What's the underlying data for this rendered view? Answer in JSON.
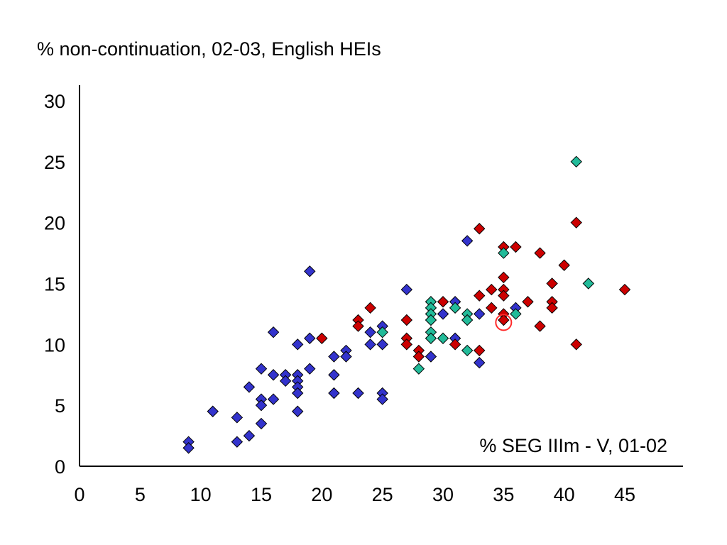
{
  "chart_data": {
    "type": "scatter",
    "title": "",
    "ylabel": "% non-continuation, 02-03, English HEIs",
    "xlabel": "",
    "annotation": "% SEG IIIm - V, 01-02",
    "xlim": [
      0,
      50
    ],
    "ylim": [
      0,
      30
    ],
    "xticks": [
      "0",
      "5",
      "10",
      "15",
      "20",
      "25",
      "30",
      "35",
      "40",
      "45"
    ],
    "yticks": [
      "0",
      "5",
      "10",
      "15",
      "20",
      "25",
      "30"
    ],
    "grid": false,
    "marker": "diamond",
    "colors": {
      "blue": "#3333cc",
      "red": "#cc0000",
      "green": "#22bb99",
      "highlight": "#ff2a2a",
      "outline": "#000000"
    },
    "series": [
      {
        "color": "blue",
        "points": [
          [
            9,
            2
          ],
          [
            9,
            1.5
          ],
          [
            11,
            4.5
          ],
          [
            13,
            4
          ],
          [
            13,
            2
          ],
          [
            14,
            2.5
          ],
          [
            14,
            6.5
          ],
          [
            15,
            8
          ],
          [
            15,
            5.5
          ],
          [
            15,
            5
          ],
          [
            15,
            3.5
          ],
          [
            16,
            11
          ],
          [
            16,
            7.5
          ],
          [
            16,
            5.5
          ],
          [
            17,
            7.5
          ],
          [
            17,
            7
          ],
          [
            18,
            10
          ],
          [
            18,
            7.5
          ],
          [
            18,
            7
          ],
          [
            18,
            6.5
          ],
          [
            18,
            6
          ],
          [
            18,
            4.5
          ],
          [
            19,
            16
          ],
          [
            19,
            10.5
          ],
          [
            19,
            8
          ],
          [
            21,
            9
          ],
          [
            21,
            7.5
          ],
          [
            21,
            6
          ],
          [
            22,
            9.5
          ],
          [
            22,
            9
          ],
          [
            23,
            6
          ],
          [
            24,
            11
          ],
          [
            24,
            10
          ],
          [
            25,
            11.5
          ],
          [
            25,
            10
          ],
          [
            25,
            6
          ],
          [
            25,
            5.5
          ],
          [
            27,
            14.5
          ],
          [
            29,
            9
          ],
          [
            30,
            12.5
          ],
          [
            31,
            13.5
          ],
          [
            31,
            10.5
          ],
          [
            32,
            18.5
          ],
          [
            33,
            12.5
          ],
          [
            33,
            8.5
          ],
          [
            36,
            13
          ]
        ]
      },
      {
        "color": "red",
        "points": [
          [
            20,
            10.5
          ],
          [
            23,
            12
          ],
          [
            23,
            11.5
          ],
          [
            24,
            13
          ],
          [
            27,
            12
          ],
          [
            27,
            10.5
          ],
          [
            27,
            10
          ],
          [
            28,
            9.5
          ],
          [
            28,
            9
          ],
          [
            30,
            13.5
          ],
          [
            31,
            10
          ],
          [
            33,
            19.5
          ],
          [
            33,
            14
          ],
          [
            33,
            9.5
          ],
          [
            34,
            14.5
          ],
          [
            34,
            13
          ],
          [
            35,
            18
          ],
          [
            35,
            15.5
          ],
          [
            35,
            14.5
          ],
          [
            35,
            14
          ],
          [
            35,
            12.5
          ],
          [
            35,
            12
          ],
          [
            36,
            18
          ],
          [
            37,
            13.5
          ],
          [
            38,
            17.5
          ],
          [
            38,
            11.5
          ],
          [
            39,
            15
          ],
          [
            39,
            13.5
          ],
          [
            39,
            13
          ],
          [
            40,
            16.5
          ],
          [
            41,
            20
          ],
          [
            41,
            10
          ],
          [
            45,
            14.5
          ]
        ]
      },
      {
        "color": "green",
        "points": [
          [
            25,
            11
          ],
          [
            28,
            8
          ],
          [
            29,
            13.5
          ],
          [
            29,
            13
          ],
          [
            29,
            12.5
          ],
          [
            29,
            12
          ],
          [
            29,
            11
          ],
          [
            29,
            10.5
          ],
          [
            30,
            10.5
          ],
          [
            31,
            13
          ],
          [
            32,
            12.5
          ],
          [
            32,
            12
          ],
          [
            32,
            9.5
          ],
          [
            35,
            17.5
          ],
          [
            36,
            12.5
          ],
          [
            41,
            25
          ],
          [
            42,
            15
          ]
        ]
      }
    ],
    "highlight_point": [
      35,
      11.8
    ]
  }
}
